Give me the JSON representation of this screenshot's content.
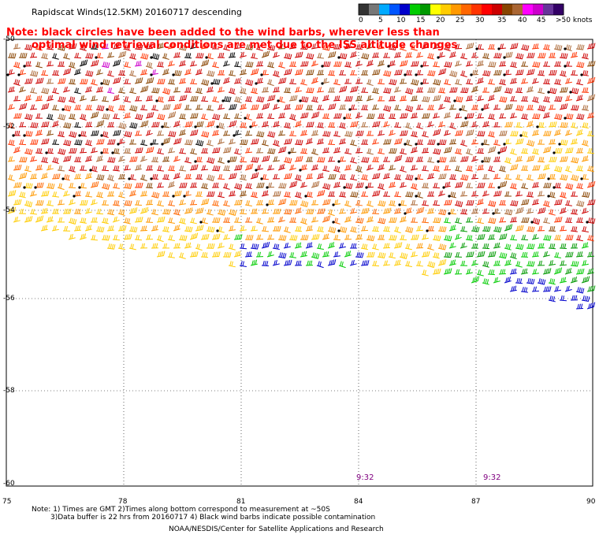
{
  "title": "Rapidscat Winds(12.5KM) 20160717  descending",
  "note_line1": "Note: black circles have been added to the wind barbs, wherever less than",
  "note_line2": "optimal wind retrieval conditions are met due to the ISS altitude changes",
  "legend": {
    "colors": [
      "#333333",
      "#777777",
      "#00aaff",
      "#0055ff",
      "#0000cc",
      "#00cc00",
      "#009900",
      "#ffff00",
      "#ffcc00",
      "#ff9900",
      "#ff6600",
      "#ff3300",
      "#ff0000",
      "#cc0000",
      "#884400",
      "#aa6633",
      "#ff00ff",
      "#cc00cc",
      "#663399",
      "#330066"
    ],
    "labels": [
      "0",
      "5",
      "10",
      "15",
      "20",
      "25",
      "30",
      "35",
      "40",
      "45",
      ">50 knots"
    ]
  },
  "lat_labels": [
    "-50",
    "-52",
    "-54",
    "-56",
    "-58",
    "-60"
  ],
  "lon_labels": [
    "75",
    "78",
    "81",
    "84",
    "87",
    "90"
  ],
  "time_labels": [
    "9:32",
    "9:32"
  ],
  "footnote_line1": "Note: 1) Times are GMT 2)Times along bottom correspond to measurement at ~50S",
  "footnote_line2": "3)Data buffer is 22 hrs from 20160717 4) Black wind barbs indicate possible contamination",
  "footnote_line3": "NOAA/NESDIS/Center for Satellite Applications and Research"
}
